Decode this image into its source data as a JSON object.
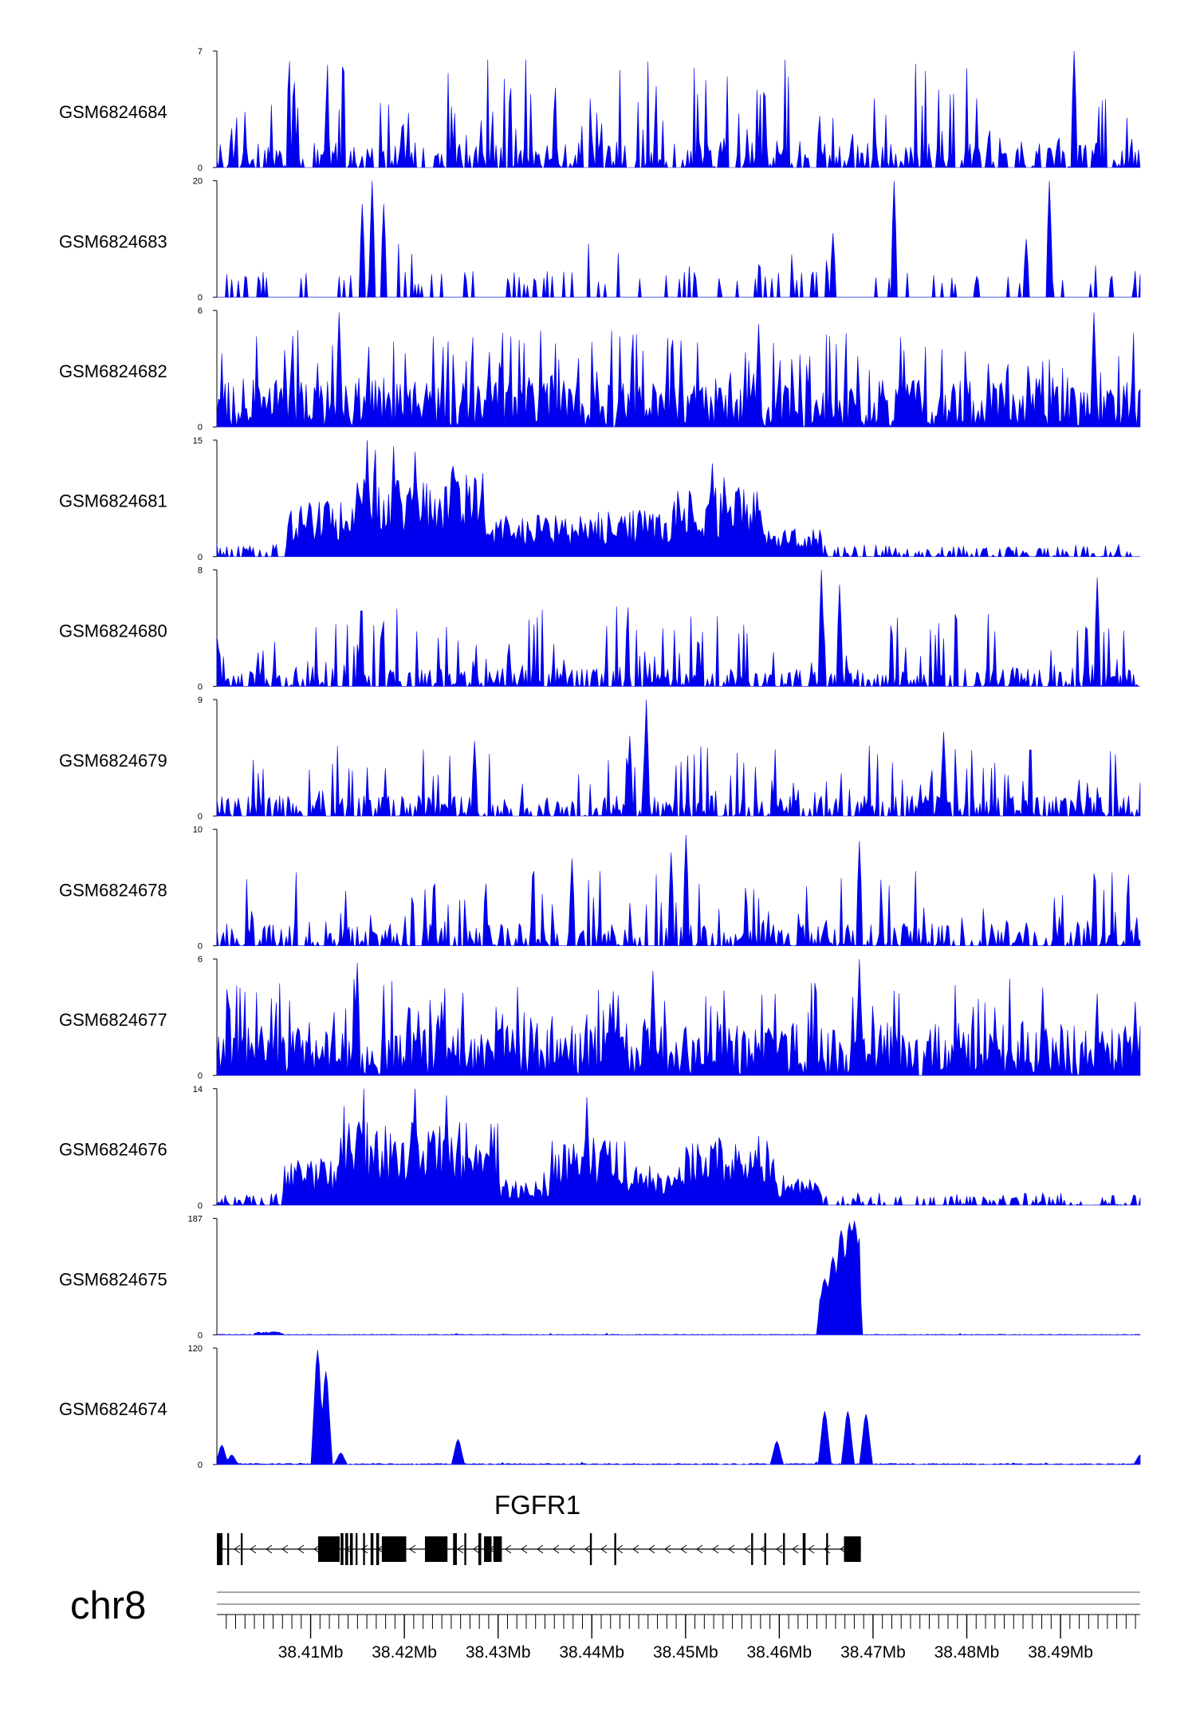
{
  "chart_data": {
    "type": "area",
    "chromosome": "chr8",
    "x_range_mb": [
      38.4,
      38.4985
    ],
    "x_ticks": [
      {
        "value": 38.41,
        "label": "38.41Mb"
      },
      {
        "value": 38.42,
        "label": "38.42Mb"
      },
      {
        "value": 38.43,
        "label": "38.43Mb"
      },
      {
        "value": 38.44,
        "label": "38.44Mb"
      },
      {
        "value": 38.45,
        "label": "38.45Mb"
      },
      {
        "value": 38.46,
        "label": "38.46Mb"
      },
      {
        "value": 38.47,
        "label": "38.47Mb"
      },
      {
        "value": 38.48,
        "label": "38.48Mb"
      },
      {
        "value": 38.49,
        "label": "38.49Mb"
      }
    ],
    "color": "#0000ee",
    "series": [
      {
        "name": "GSM6824684",
        "ymin_label": "0",
        "ymax_label": "7",
        "ymax": 7,
        "pattern": "sparse_spiky",
        "seed": 11,
        "base": 1.0,
        "spike_max": 6.5,
        "peaks": [
          [
            38.4915,
            7.0
          ]
        ]
      },
      {
        "name": "GSM6824683",
        "ymin_label": "0",
        "ymax_label": "20",
        "ymax": 20,
        "pattern": "very_sparse",
        "seed": 23,
        "base": 2.0,
        "spike_max": 10,
        "peaks": [
          [
            38.4155,
            16
          ],
          [
            38.4165,
            20
          ],
          [
            38.4178,
            16
          ],
          [
            38.4722,
            20
          ],
          [
            38.4888,
            20
          ],
          [
            38.4864,
            10
          ],
          [
            38.4657,
            11
          ]
        ]
      },
      {
        "name": "GSM6824682",
        "ymin_label": "0",
        "ymax_label": "6",
        "ymax": 6,
        "pattern": "dense_spiky",
        "seed": 37,
        "base": 1.6,
        "spike_max": 5.0,
        "peaks": [
          [
            38.413,
            5.9
          ],
          [
            38.4935,
            5.9
          ],
          [
            38.4578,
            5.3
          ]
        ]
      },
      {
        "name": "GSM6824681",
        "ymin_label": "0",
        "ymax_label": "15",
        "ymax": 15,
        "pattern": "broad_domain",
        "seed": 41,
        "base": 0.6,
        "spike_max": 1.6,
        "domains": [
          [
            38.4075,
            38.4148,
            6.0
          ],
          [
            38.4148,
            38.4285,
            9.0
          ],
          [
            38.4285,
            38.4395,
            4.5
          ],
          [
            38.4395,
            38.4485,
            5.0
          ],
          [
            38.4485,
            38.4585,
            7.5
          ],
          [
            38.4585,
            38.4645,
            3.0
          ]
        ],
        "peaks": [
          [
            38.416,
            15
          ],
          [
            38.4188,
            14.2
          ],
          [
            38.4212,
            13.5
          ],
          [
            38.4528,
            12.0
          ]
        ]
      },
      {
        "name": "GSM6824680",
        "ymin_label": "0",
        "ymax_label": "8",
        "ymax": 8,
        "pattern": "sparse_spiky",
        "seed": 53,
        "base": 0.8,
        "spike_max": 5.5,
        "peaks": [
          [
            38.4645,
            8.0
          ],
          [
            38.4665,
            7.0
          ],
          [
            38.494,
            7.5
          ]
        ]
      },
      {
        "name": "GSM6824679",
        "ymin_label": "0",
        "ymax_label": "9",
        "ymax": 9,
        "pattern": "sparse_spiky",
        "seed": 61,
        "base": 1.0,
        "spike_max": 5.5,
        "peaks": [
          [
            38.4458,
            9.0
          ],
          [
            38.444,
            6.2
          ],
          [
            38.4775,
            6.5
          ],
          [
            38.4275,
            5.8
          ]
        ]
      },
      {
        "name": "GSM6824678",
        "ymin_label": "0",
        "ymax_label": "10",
        "ymax": 10,
        "pattern": "sparse_spiky",
        "seed": 71,
        "base": 1.2,
        "spike_max": 6.5,
        "peaks": [
          [
            38.45,
            9.5
          ],
          [
            38.4685,
            9.0
          ],
          [
            38.4378,
            7.5
          ],
          [
            38.4485,
            8.0
          ]
        ]
      },
      {
        "name": "GSM6824677",
        "ymin_label": "0",
        "ymax_label": "6",
        "ymax": 6,
        "pattern": "dense_spiky",
        "seed": 83,
        "base": 1.7,
        "spike_max": 5.0,
        "peaks": [
          [
            38.415,
            5.8
          ],
          [
            38.4685,
            6.0
          ],
          [
            38.4465,
            5.4
          ]
        ]
      },
      {
        "name": "GSM6824676",
        "ymin_label": "0",
        "ymax_label": "14",
        "ymax": 14,
        "pattern": "broad_domain",
        "seed": 97,
        "base": 0.5,
        "spike_max": 1.5,
        "domains": [
          [
            38.407,
            38.4128,
            4.5
          ],
          [
            38.4128,
            38.43,
            8.5
          ],
          [
            38.43,
            38.4355,
            2.5
          ],
          [
            38.4355,
            38.4438,
            6.5
          ],
          [
            38.4438,
            38.4498,
            4.0
          ],
          [
            38.4498,
            38.4595,
            6.5
          ],
          [
            38.4595,
            38.4645,
            3.0
          ]
        ],
        "peaks": [
          [
            38.4212,
            14.0
          ],
          [
            38.4395,
            13.0
          ],
          [
            38.4245,
            13.2
          ]
        ]
      },
      {
        "name": "GSM6824675",
        "ymin_label": "0",
        "ymax_label": "187",
        "ymax": 187,
        "pattern": "single_peak",
        "seed": 101,
        "base": 1.0,
        "spike_max": 3.0,
        "domains": [
          [
            38.404,
            38.4072,
            4.5
          ]
        ],
        "peaks": [
          [
            38.4648,
            90
          ],
          [
            38.4658,
            125
          ],
          [
            38.4666,
            168
          ],
          [
            38.4674,
            180
          ],
          [
            38.4681,
            183
          ]
        ]
      },
      {
        "name": "GSM6824674",
        "ymin_label": "0",
        "ymax_label": "120",
        "ymax": 120,
        "pattern": "few_peaks",
        "seed": 113,
        "base": 1.2,
        "spike_max": 3.0,
        "peaks": [
          [
            38.4006,
            20
          ],
          [
            38.4015,
            10
          ],
          [
            38.4108,
            118
          ],
          [
            38.4116,
            96
          ],
          [
            38.4133,
            12
          ],
          [
            38.4257,
            26
          ],
          [
            38.4598,
            24
          ],
          [
            38.4649,
            55
          ],
          [
            38.4673,
            55
          ],
          [
            38.4693,
            52
          ],
          [
            38.4985,
            10
          ]
        ]
      }
    ],
    "gene": {
      "name": "FGFR1",
      "strand": "-",
      "start_mb": 38.4,
      "end_mb": 38.4687,
      "exons_mb": [
        [
          38.4,
          38.4006
        ],
        [
          38.4011,
          38.4013
        ],
        [
          38.40255,
          38.40275
        ],
        [
          38.4108,
          38.4131
        ],
        [
          38.4132,
          38.4135
        ],
        [
          38.4137,
          38.414
        ],
        [
          38.4142,
          38.4145
        ],
        [
          38.4148,
          38.415
        ],
        [
          38.4156,
          38.4158
        ],
        [
          38.4164,
          38.4167
        ],
        [
          38.417,
          38.4173
        ],
        [
          38.4176,
          38.4202
        ],
        [
          38.4222,
          38.4246
        ],
        [
          38.4252,
          38.4256
        ],
        [
          38.4264,
          38.4266
        ],
        [
          38.4279,
          38.4282
        ],
        [
          38.4285,
          38.4293
        ],
        [
          38.4295,
          38.4304
        ],
        [
          38.4398,
          38.44
        ],
        [
          38.4424,
          38.4426
        ],
        [
          38.457,
          38.4572
        ],
        [
          38.4584,
          38.4586
        ],
        [
          38.4604,
          38.4606
        ],
        [
          38.4625,
          38.4628
        ],
        [
          38.465,
          38.4652
        ],
        [
          38.4669,
          38.4687
        ]
      ]
    }
  }
}
